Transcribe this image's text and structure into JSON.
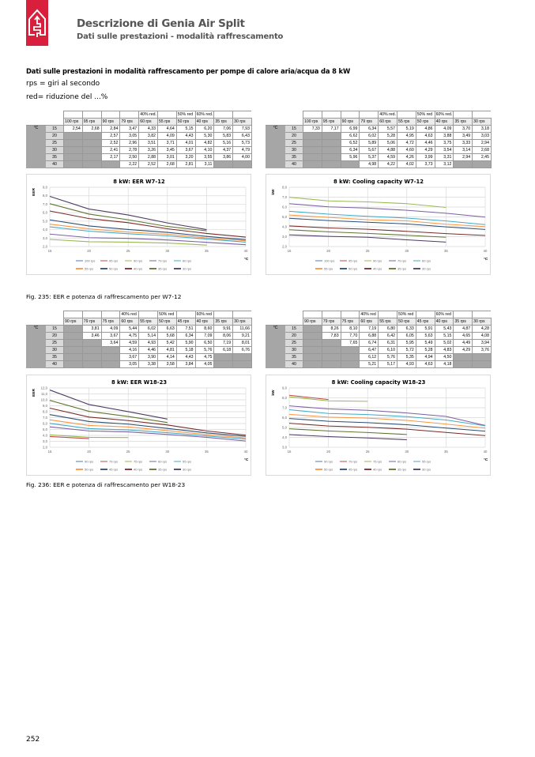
{
  "header": {
    "title": "Descrizione di Genia Air Split",
    "subtitle": "Dati sulle prestazioni - modalità raffrescamento"
  },
  "intro": {
    "heading": "Dati sulle prestazioni in modalità raffrescamento per pompe di calore aria/acqua da 8 kW",
    "line1": "rps = giri al secondo",
    "line2": "red= riduzione del ...%"
  },
  "colors": {
    "brand": "#d8203c",
    "series": [
      "#4a7ebb",
      "#be4b48",
      "#98b954",
      "#7d60a0",
      "#46aac5",
      "#f79646",
      "#2c4d75",
      "#772c2a",
      "#5f7530",
      "#4d3b62"
    ]
  },
  "tables": [
    {
      "unit": "°C",
      "cols": [
        "100 rps",
        "95 rps",
        "90 rps",
        "79 rps",
        "60 rps",
        "55 rps",
        "50 rps",
        "40 rps",
        "35 rps",
        "30 rps"
      ],
      "reds": [
        "",
        "",
        "",
        "",
        "40% red.",
        "",
        "50% red",
        "60% red.",
        "",
        ""
      ],
      "rows": [
        {
          "t": "15",
          "v": [
            "2,54",
            "2,68",
            "2,84",
            "3,47",
            "4,33",
            "4,64",
            "5,15",
            "6,20",
            "7,06",
            "7,93"
          ]
        },
        {
          "t": "20",
          "v": [
            null,
            null,
            "2,57",
            "3,05",
            "3,82",
            "4,09",
            "4,43",
            "5,30",
            "5,83",
            "6,43"
          ]
        },
        {
          "t": "25",
          "v": [
            null,
            null,
            "2,52",
            "2,96",
            "3,51",
            "3,71",
            "4,01",
            "4,82",
            "5,16",
            "5,73"
          ]
        },
        {
          "t": "30",
          "v": [
            null,
            null,
            "2,41",
            "2,78",
            "3,26",
            "3,45",
            "3,67",
            "4,10",
            "4,37",
            "4,79"
          ]
        },
        {
          "t": "35",
          "v": [
            null,
            null,
            "2,17",
            "2,50",
            "2,88",
            "3,01",
            "3,20",
            "3,55",
            "3,86",
            "4,00"
          ]
        },
        {
          "t": "40",
          "v": [
            null,
            null,
            null,
            "2,22",
            "2,52",
            "2,68",
            "2,81",
            "3,11",
            null,
            null
          ]
        }
      ]
    },
    {
      "unit": "°C",
      "cols": [
        "100 rps",
        "95 rps",
        "90 rps",
        "79 rps",
        "60 rps",
        "55 rps",
        "50 rps",
        "40 rps",
        "35 rps",
        "30 rps"
      ],
      "reds": [
        "",
        "",
        "",
        "",
        "40% red.",
        "",
        "50% red",
        "60% red.",
        "",
        ""
      ],
      "rows": [
        {
          "t": "15",
          "v": [
            "7,33",
            "7,17",
            "6,99",
            "6,34",
            "5,57",
            "5,19",
            "4,86",
            "4,09",
            "3,70",
            "3,18"
          ]
        },
        {
          "t": "20",
          "v": [
            null,
            null,
            "6,62",
            "6,02",
            "5,28",
            "4,95",
            "4,63",
            "3,88",
            "3,49",
            "3,03"
          ]
        },
        {
          "t": "25",
          "v": [
            null,
            null,
            "6,52",
            "5,89",
            "5,06",
            "4,72",
            "4,46",
            "3,75",
            "3,33",
            "2,94"
          ]
        },
        {
          "t": "30",
          "v": [
            null,
            null,
            "6,34",
            "5,67",
            "4,88",
            "4,60",
            "4,29",
            "3,54",
            "3,14",
            "2,68"
          ]
        },
        {
          "t": "35",
          "v": [
            null,
            null,
            "5,96",
            "5,37",
            "4,59",
            "4,26",
            "3,99",
            "3,31",
            "2,94",
            "2,45"
          ]
        },
        {
          "t": "40",
          "v": [
            null,
            null,
            null,
            "4,98",
            "4,22",
            "4,02",
            "3,73",
            "3,12",
            null,
            null
          ]
        }
      ]
    },
    {
      "unit": "°C",
      "cols": [
        "90 rps",
        "79 rps",
        "75 rps",
        "60 rps",
        "55 rps",
        "50 rps",
        "45 rps",
        "40 rps",
        "35 rps",
        "30 rps"
      ],
      "reds": [
        "",
        "",
        "",
        "40% red",
        "",
        "50% red",
        "",
        "60% red",
        "",
        ""
      ],
      "rows": [
        {
          "t": "15",
          "v": [
            null,
            "3,81",
            "4,09",
            "5,44",
            "6,02",
            "6,63",
            "7,51",
            "8,60",
            "9,91",
            "11,66"
          ]
        },
        {
          "t": "20",
          "v": [
            null,
            "3,46",
            "3,67",
            "4,75",
            "5,14",
            "5,68",
            "6,34",
            "7,09",
            "8,06",
            "9,21"
          ]
        },
        {
          "t": "25",
          "v": [
            null,
            null,
            "3,64",
            "4,59",
            "4,93",
            "5,42",
            "5,90",
            "6,50",
            "7,19",
            "8,01"
          ]
        },
        {
          "t": "30",
          "v": [
            null,
            null,
            null,
            "4,16",
            "4,46",
            "4,81",
            "5,18",
            "5,76",
            "6,18",
            "6,76"
          ]
        },
        {
          "t": "35",
          "v": [
            null,
            null,
            null,
            "3,67",
            "3,90",
            "4,14",
            "4,43",
            "4,75",
            null,
            null
          ]
        },
        {
          "t": "40",
          "v": [
            null,
            null,
            null,
            "3,05",
            "3,38",
            "3,58",
            "3,84",
            "4,05",
            null,
            null
          ]
        }
      ]
    },
    {
      "unit": "°C",
      "cols": [
        "90 rps",
        "79 rps",
        "75 rps",
        "60 rps",
        "55 rps",
        "50 rps",
        "45 rps",
        "40 rps",
        "35 rps",
        "30 rps"
      ],
      "reds": [
        "",
        "",
        "",
        "40% red",
        "",
        "50% red",
        "",
        "60% red",
        "",
        ""
      ],
      "rows": [
        {
          "t": "15",
          "v": [
            null,
            "8,26",
            "8,10",
            "7,19",
            "6,80",
            "6,33",
            "5,91",
            "5,43",
            "4,87",
            "4,28"
          ]
        },
        {
          "t": "20",
          "v": [
            null,
            "7,83",
            "7,70",
            "6,88",
            "6,42",
            "6,05",
            "5,63",
            "5,15",
            "4,65",
            "4,08"
          ]
        },
        {
          "t": "25",
          "v": [
            null,
            null,
            "7,65",
            "6,74",
            "6,31",
            "5,95",
            "5,49",
            "5,02",
            "4,49",
            "3,94"
          ]
        },
        {
          "t": "30",
          "v": [
            null,
            null,
            null,
            "6,47",
            "6,10",
            "5,72",
            "5,28",
            "4,83",
            "4,29",
            "3,76"
          ]
        },
        {
          "t": "35",
          "v": [
            null,
            null,
            null,
            "6,12",
            "5,76",
            "5,35",
            "4,94",
            "4,50",
            null,
            null
          ]
        },
        {
          "t": "40",
          "v": [
            null,
            null,
            null,
            "5,21",
            "5,17",
            "4,93",
            "4,63",
            "4,18",
            null,
            null
          ]
        }
      ]
    }
  ],
  "chart_data": [
    {
      "type": "line",
      "table": 0,
      "title": "8 kW: EER W7-12",
      "ylabel": "EER",
      "xlabel": "°C",
      "x": [
        15,
        20,
        25,
        30,
        35,
        40
      ],
      "xlim": [
        15,
        40
      ],
      "ylim": [
        2,
        9
      ],
      "yticks": [
        "2,0",
        "3,0",
        "4,0",
        "5,0",
        "6,0",
        "7,0",
        "8,0",
        "9,0"
      ],
      "xticks": [
        "15",
        "20",
        "25",
        "30",
        "35",
        "40"
      ],
      "grid": true,
      "legend": "bottom"
    },
    {
      "type": "line",
      "table": 1,
      "title": "8 kW: Cooling capacity W7-12",
      "ylabel": "kW",
      "xlabel": "°C",
      "x": [
        15,
        20,
        25,
        30,
        35,
        40
      ],
      "xlim": [
        15,
        40
      ],
      "ylim": [
        2,
        8
      ],
      "yticks": [
        "2,0",
        "3,0",
        "4,0",
        "5,0",
        "6,0",
        "7,0",
        "8,0"
      ],
      "xticks": [
        "15",
        "20",
        "25",
        "30",
        "35",
        "40"
      ],
      "grid": true,
      "legend": "bottom"
    },
    {
      "type": "line",
      "table": 2,
      "title": "8 kW: EER W18-23",
      "ylabel": "EER",
      "xlabel": "°C",
      "x": [
        15,
        20,
        25,
        30,
        35,
        40
      ],
      "xlim": [
        15,
        40
      ],
      "ylim": [
        2,
        12
      ],
      "yticks": [
        "2,0",
        "3,0",
        "4,0",
        "5,0",
        "6,0",
        "7,0",
        "8,0",
        "9,0",
        "10,0",
        "11,0",
        "12,0"
      ],
      "xticks": [
        "15",
        "20",
        "25",
        "30",
        "35",
        "40"
      ],
      "grid": true,
      "legend": "bottom"
    },
    {
      "type": "line",
      "table": 3,
      "title": "8 kW: Cooling capacity W18-23",
      "ylabel": "kW",
      "xlabel": "°C",
      "x": [
        15,
        20,
        25,
        30,
        35,
        40
      ],
      "xlim": [
        15,
        40
      ],
      "ylim": [
        3,
        9
      ],
      "yticks": [
        "3,0",
        "4,0",
        "5,0",
        "6,0",
        "7,0",
        "8,0",
        "9,0"
      ],
      "xticks": [
        "15",
        "20",
        "25",
        "30",
        "35",
        "40"
      ],
      "grid": true,
      "legend": "bottom"
    }
  ],
  "captions": {
    "fig235": "Fig. 235:    EER e potenza di raffrescamento per W7-12",
    "fig236": "Fig. 236:    EER e potenza di raffrescamento per W18-23"
  },
  "page_number": "252"
}
